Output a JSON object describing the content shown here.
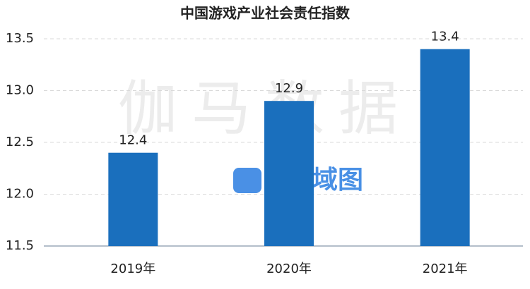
{
  "chart_data": {
    "type": "bar",
    "title": "中国游戏产业社会责任指数",
    "categories": [
      "2019年",
      "2020年",
      "2021年"
    ],
    "values": [
      12.4,
      12.9,
      13.4
    ],
    "color": "#1a6fbd",
    "ylim": [
      11.5,
      13.5
    ],
    "yticks": [
      11.5,
      {
        "value": 12,
        "label": "12.0"
      },
      12.5,
      {
        "value": 13,
        "label": "13.0"
      },
      13.5
    ],
    "grid": true,
    "watermark": {
      "main": "伽马数据",
      "logo": "领域图"
    }
  }
}
